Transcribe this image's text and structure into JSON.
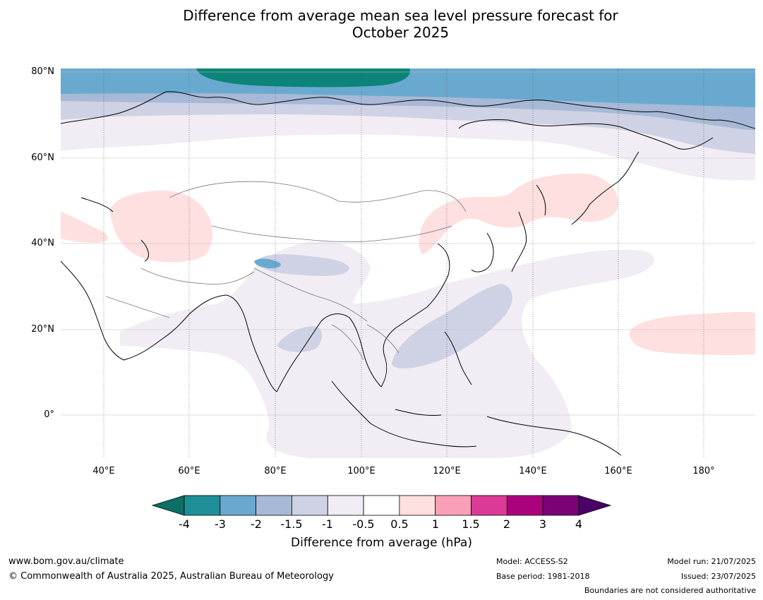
{
  "title": {
    "line1": "Difference from average mean sea level pressure forecast for",
    "line2": "October 2025"
  },
  "map": {
    "lat_labels": [
      "80°N",
      "60°N",
      "40°N",
      "20°N",
      "0°"
    ],
    "lon_labels": [
      "40°E",
      "60°E",
      "80°E",
      "100°E",
      "120°E",
      "140°E",
      "160°E",
      "180°"
    ],
    "extent": {
      "lon": [
        30,
        192
      ],
      "lat": [
        -10,
        80
      ]
    }
  },
  "colorbar": {
    "ticks": [
      "-4",
      "-3",
      "-2",
      "-1.5",
      "-1",
      "-0.5",
      "0.5",
      "1",
      "1.5",
      "2",
      "3",
      "4"
    ],
    "colors": [
      "#0c6f64",
      "#1e8f98",
      "#6aa9cf",
      "#a7b9d6",
      "#cfd2e4",
      "#f2ecf4",
      "#ffffff",
      "#fde0df",
      "#f9a0b8",
      "#dc3a97",
      "#ac017d",
      "#7b0177",
      "#4a0068"
    ],
    "label": "Difference from average (hPa)"
  },
  "footer": {
    "website": "www.bom.gov.au/climate",
    "copyright": "© Commonwealth of Australia 2025, Australian Bureau of Meteorology",
    "model": "Model: ACCESS-S2",
    "base_period": "Base period: 1981-2018",
    "model_run": "Model run: 21/07/2025",
    "issued": "Issued: 23/07/2025",
    "disclaimer": "Boundaries are not considered authoritative"
  }
}
